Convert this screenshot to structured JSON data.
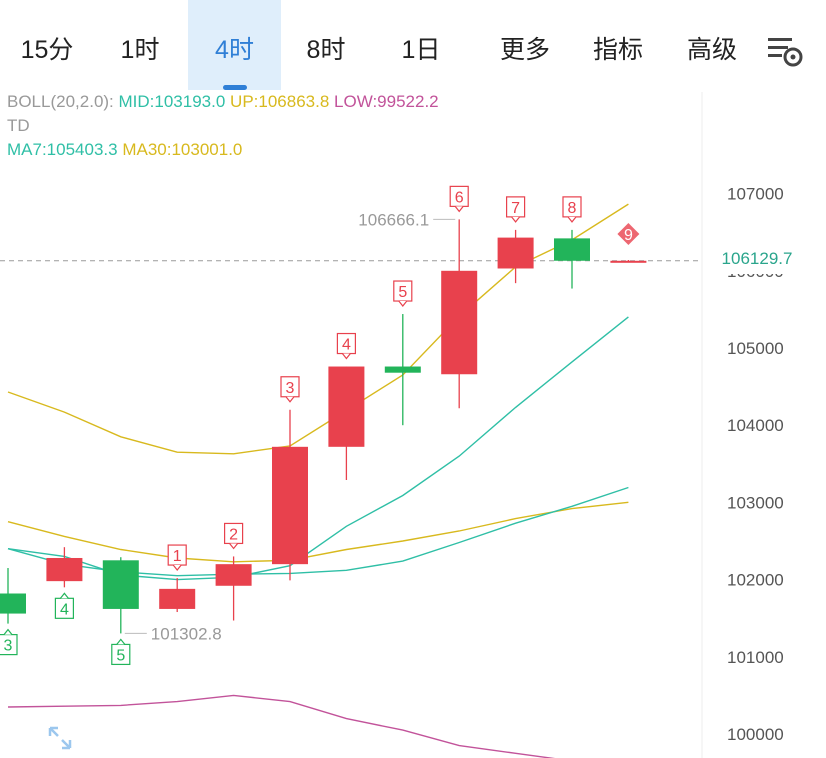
{
  "tabs": [
    {
      "label": "15分",
      "active": false,
      "dropdown": false
    },
    {
      "label": "1时",
      "active": false,
      "dropdown": false
    },
    {
      "label": "4时",
      "active": true,
      "dropdown": false
    },
    {
      "label": "8时",
      "active": false,
      "dropdown": false
    },
    {
      "label": "1日",
      "active": false,
      "dropdown": false
    },
    {
      "label": "更多",
      "active": false,
      "dropdown": true
    },
    {
      "label": "指标",
      "active": false,
      "dropdown": true
    },
    {
      "label": "高级",
      "active": false,
      "dropdown": true
    }
  ],
  "settings_icon": "chart-settings-icon",
  "indicators": {
    "boll": {
      "name": "BOLL(20,2.0):",
      "mid": "MID:103193.0",
      "up": "UP:106863.8",
      "low": "LOW:99522.2"
    },
    "td": "TD",
    "ma7": "MA7:105403.3",
    "ma30": "MA30:103001.0"
  },
  "colors": {
    "up": "#e8414d",
    "down": "#22b45a",
    "ma7": "#2fbfa6",
    "ma30": "#d8b91e",
    "boll_low": "#c2539a",
    "accent": "#2f7fd6"
  },
  "price_axis": {
    "ticks": [
      100000,
      101000,
      102000,
      103000,
      104000,
      105000,
      106000,
      107000
    ]
  },
  "current_price": {
    "label": "106129.7",
    "value": 106129.7
  },
  "annotations": {
    "high": "106666.1",
    "low": "101302.8"
  },
  "candles": [
    {
      "open": 101820,
      "close": 101560,
      "high": 102150,
      "low": 101430,
      "td": "3",
      "td_pos": "below"
    },
    {
      "open": 101980,
      "close": 102280,
      "high": 102420,
      "low": 101900,
      "td": "4",
      "td_pos": "below"
    },
    {
      "open": 102250,
      "close": 101620,
      "high": 102290,
      "low": 101302.8,
      "td": "5",
      "td_pos": "below"
    },
    {
      "open": 101620,
      "close": 101880,
      "high": 102020,
      "low": 101580,
      "td": "1",
      "td_pos": "above"
    },
    {
      "open": 101920,
      "close": 102200,
      "high": 102300,
      "low": 101470,
      "td": "2",
      "td_pos": "above"
    },
    {
      "open": 102200,
      "close": 103720,
      "high": 104200,
      "low": 101990,
      "td": "3",
      "td_pos": "above"
    },
    {
      "open": 103720,
      "close": 104760,
      "high": 104760,
      "low": 103290,
      "td": "4",
      "td_pos": "above"
    },
    {
      "open": 104760,
      "close": 104680,
      "high": 105440,
      "low": 104000,
      "td": "5",
      "td_pos": "above"
    },
    {
      "open": 104660,
      "close": 106000,
      "high": 106666.1,
      "low": 104220,
      "td": "6",
      "td_pos": "above"
    },
    {
      "open": 106030,
      "close": 106430,
      "high": 106530,
      "low": 105840,
      "td": "7",
      "td_pos": "above"
    },
    {
      "open": 106420,
      "close": 106130,
      "high": 106530,
      "low": 105770,
      "td": "8",
      "td_pos": "above"
    },
    {
      "open": 106129.7,
      "close": 106129.7,
      "high": 106140,
      "low": 106120,
      "td": "9",
      "td_pos": "above"
    }
  ],
  "ma7_series": [
    102400,
    102300,
    102060,
    102000,
    102030,
    102180,
    102690,
    103090,
    103600,
    104230,
    104820,
    105403.3
  ],
  "ma30_series": [
    102750,
    102560,
    102390,
    102280,
    102230,
    102250,
    102390,
    102500,
    102630,
    102790,
    102920,
    103001.0
  ],
  "boll_mid_series": [
    102400,
    102200,
    102100,
    102050,
    102070,
    102080,
    102120,
    102240,
    102480,
    102730,
    102950,
    103193.0
  ],
  "boll_up_series": [
    104430,
    104170,
    103850,
    103650,
    103630,
    103730,
    104190,
    104650,
    105410,
    106050,
    106400,
    106863.8
  ],
  "boll_low_series": [
    100350,
    100360,
    100370,
    100420,
    100500,
    100420,
    100200,
    100050,
    99850,
    99750,
    99650,
    99522.2
  ]
}
